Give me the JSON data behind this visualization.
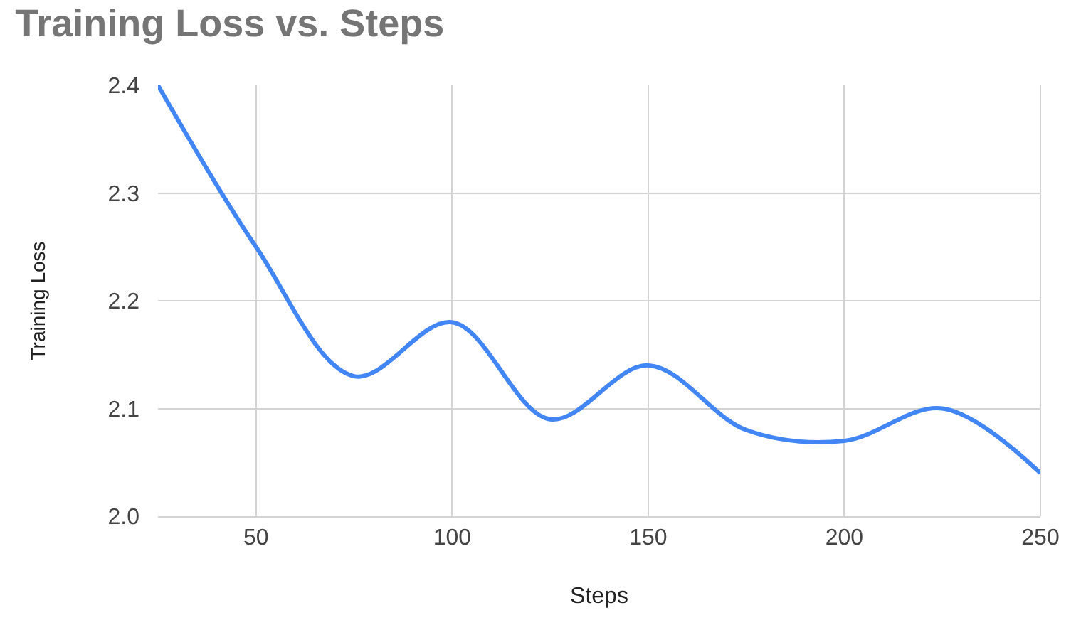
{
  "chart_data": {
    "type": "line",
    "title": "Training Loss vs. Steps",
    "xlabel": "Steps",
    "ylabel": "Training Loss",
    "x": [
      25,
      50,
      75,
      100,
      125,
      150,
      175,
      200,
      225,
      250
    ],
    "series": [
      {
        "color": "#4285f4",
        "values": [
          2.4,
          2.25,
          2.13,
          2.18,
          2.09,
          2.14,
          2.08,
          2.07,
          2.1,
          2.04
        ]
      }
    ],
    "xlim": [
      25,
      250
    ],
    "xticks": [
      50,
      100,
      150,
      200,
      250
    ],
    "ylim": [
      2.0,
      2.4
    ],
    "yticks": [
      {
        "value": 2.0,
        "label": "2.0"
      },
      2.1,
      2.2,
      2.3,
      2.4
    ],
    "grid": true,
    "marker": "none",
    "line_style": "solid"
  }
}
